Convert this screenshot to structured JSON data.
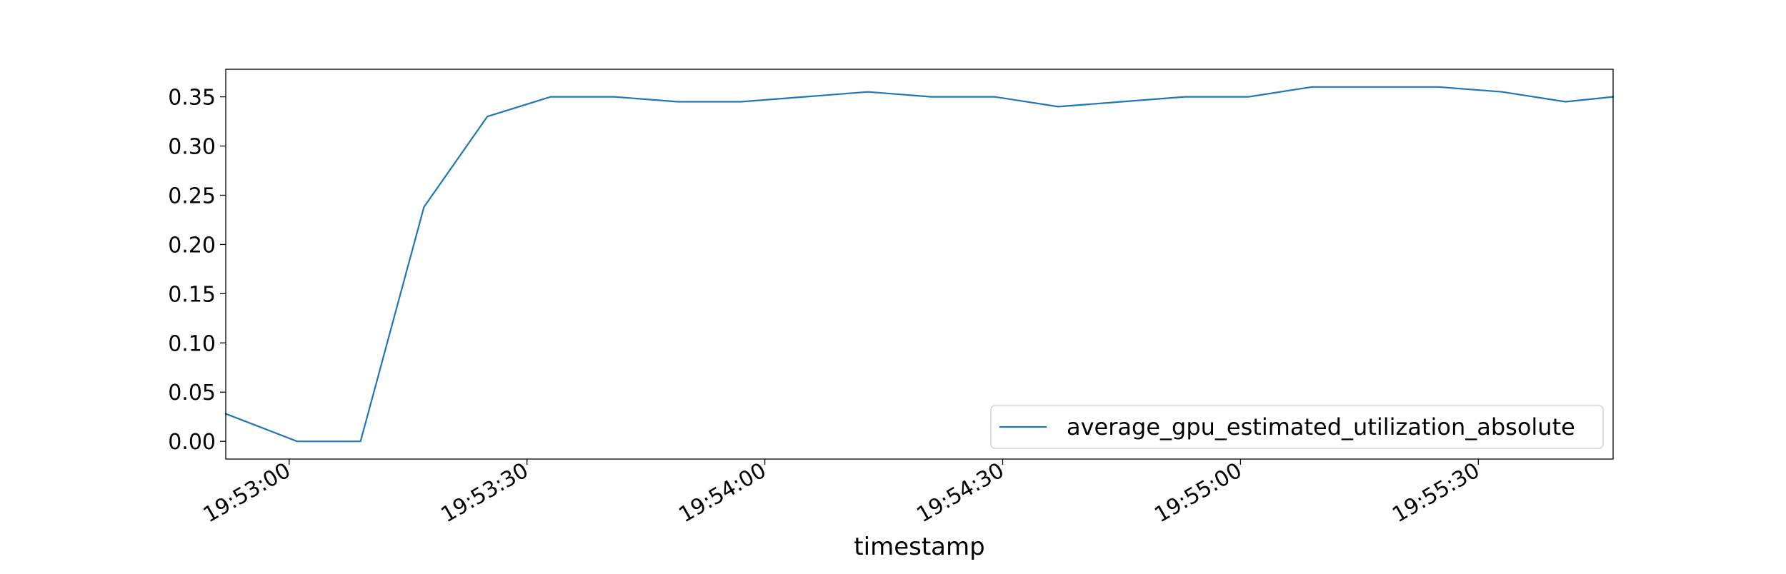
{
  "chart_data": {
    "type": "line",
    "title": "",
    "xlabel": "timestamp",
    "ylabel": "",
    "x_axis_kind": "time",
    "xlim": [
      "19:52:52",
      "19:55:47"
    ],
    "ylim": [
      -0.018,
      0.378
    ],
    "x_ticks": [
      "19:53:00",
      "19:53:30",
      "19:54:00",
      "19:54:30",
      "19:55:00",
      "19:55:30"
    ],
    "y_ticks": [
      0.0,
      0.05,
      0.1,
      0.15,
      0.2,
      0.25,
      0.3,
      0.35
    ],
    "y_tick_labels": [
      "0.00",
      "0.05",
      "0.10",
      "0.15",
      "0.20",
      "0.25",
      "0.30",
      "0.35"
    ],
    "grid": false,
    "legend_position": "lower-right",
    "series": [
      {
        "name": "average_gpu_estimated_utilization_absolute",
        "color": "#1f77b4",
        "x": [
          "19:52:52",
          "19:53:01",
          "19:53:09",
          "19:53:17",
          "19:53:25",
          "19:53:33",
          "19:53:41",
          "19:53:49",
          "19:53:57",
          "19:54:05",
          "19:54:13",
          "19:54:21",
          "19:54:29",
          "19:54:37",
          "19:54:45",
          "19:54:53",
          "19:55:01",
          "19:55:09",
          "19:55:17",
          "19:55:25",
          "19:55:33",
          "19:55:41",
          "19:55:47"
        ],
        "y": [
          0.028,
          0.0,
          0.0,
          0.238,
          0.33,
          0.35,
          0.35,
          0.345,
          0.345,
          0.35,
          0.355,
          0.35,
          0.35,
          0.34,
          0.345,
          0.35,
          0.35,
          0.36,
          0.36,
          0.36,
          0.355,
          0.345,
          0.35
        ]
      }
    ]
  }
}
